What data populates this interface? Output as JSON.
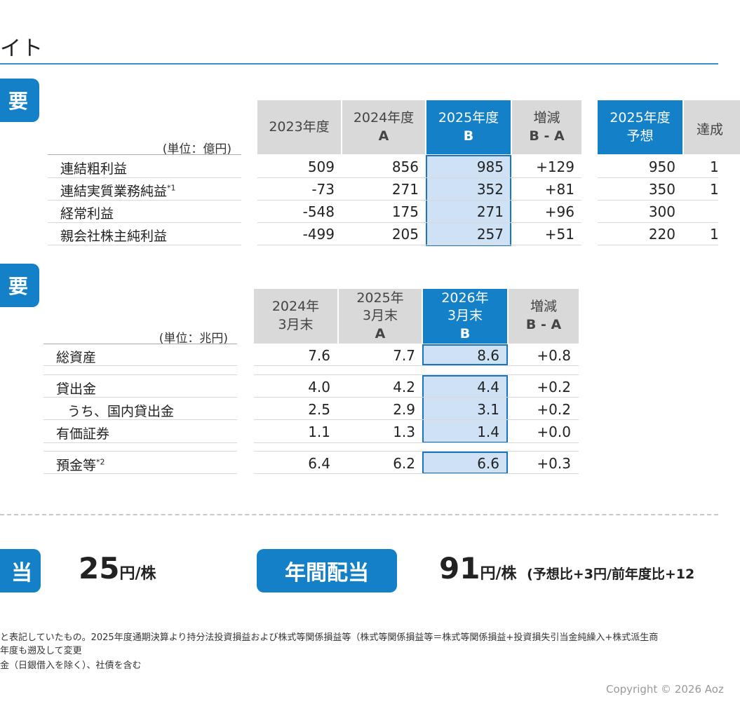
{
  "header": {
    "title": "イト"
  },
  "section1": {
    "tab": "要",
    "unit": "(単位：億円)",
    "headers": [
      {
        "line1": "2023年度",
        "line2": ""
      },
      {
        "line1": "2024年度",
        "line2": "A"
      },
      {
        "line1": "2025年度",
        "line2": "B"
      },
      {
        "line1": "増減",
        "line2": "B - A"
      }
    ],
    "forecast_headers": [
      {
        "line1": "2025年度",
        "line2": "予想"
      },
      {
        "line1": "達成",
        "line2": ""
      }
    ],
    "rows": [
      {
        "label": "連結粗利益",
        "sup": "",
        "v2023": "509",
        "v2024": "856",
        "v2025": "985",
        "diff": "+129",
        "forecast": "950",
        "achv": "1"
      },
      {
        "label": "連結実質業務純益",
        "sup": "*1",
        "v2023": "-73",
        "v2024": "271",
        "v2025": "352",
        "diff": "+81",
        "forecast": "350",
        "achv": "1"
      },
      {
        "label": "経常利益",
        "sup": "",
        "v2023": "-548",
        "v2024": "175",
        "v2025": "271",
        "diff": "+96",
        "forecast": "300",
        "achv": ""
      },
      {
        "label": "親会社株主純利益",
        "sup": "",
        "v2023": "-499",
        "v2024": "205",
        "v2025": "257",
        "diff": "+51",
        "forecast": "220",
        "achv": "1"
      }
    ]
  },
  "section2": {
    "tab": "要",
    "unit": "(単位：兆円)",
    "headers": [
      {
        "line1": "2024年",
        "line2": "3月末",
        "line3": ""
      },
      {
        "line1": "2025年",
        "line2": "3月末",
        "line3": "A"
      },
      {
        "line1": "2026年",
        "line2": "3月末",
        "line3": "B"
      },
      {
        "line1": "増減",
        "line2": "B - A",
        "line3": ""
      }
    ],
    "rows": [
      {
        "label": "総資産",
        "sup": "",
        "a": "7.6",
        "b": "7.7",
        "c": "8.6",
        "diff": "+0.8"
      },
      {
        "label": "貸出金",
        "sup": "",
        "a": "4.0",
        "b": "4.2",
        "c": "4.4",
        "diff": "+0.2"
      },
      {
        "label": "うち、国内貸出金",
        "sup": "",
        "a": "2.5",
        "b": "2.9",
        "c": "3.1",
        "diff": "+0.2"
      },
      {
        "label": "有価証券",
        "sup": "",
        "a": "1.1",
        "b": "1.3",
        "c": "1.4",
        "diff": "+0.0"
      },
      {
        "label": "預金等",
        "sup": "*2",
        "a": "6.4",
        "b": "6.2",
        "c": "6.6",
        "diff": "+0.3"
      }
    ]
  },
  "dividend": {
    "left_tab": "当",
    "left_value": "25",
    "left_unit": "円/株",
    "right_tab": "年間配当",
    "right_value": "91",
    "right_unit": "円/株",
    "right_note": "(予想比+3円/前年度比+12"
  },
  "footnotes": [
    "と表記していたもの。2025年度通期決算より持分法投資損益および株式等関係損益等（株式等関係損益等＝株式等関係損益+投資損失引当金純繰入+株式派生商",
    "年度も遡及して変更",
    "金（日銀借入を除く）、社債を含む"
  ],
  "copyright": "Copyright © 2026 Aoz"
}
